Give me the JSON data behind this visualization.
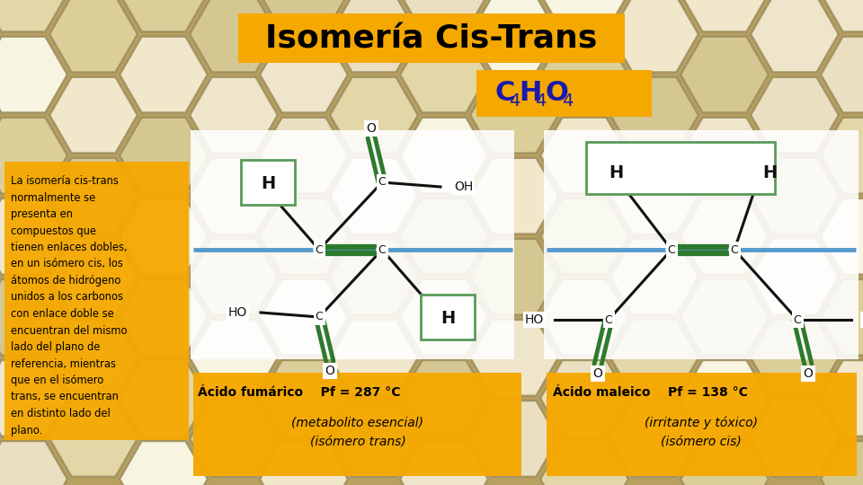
{
  "title": "Isomería Cis-Trans",
  "title_bg": "#F5A800",
  "left_box_color": "#F5A800",
  "left_lines": [
    "La isomería cis-trans",
    "normalmente se",
    "presenta en",
    "compuestos que",
    "tienen enlaces dobles,",
    "en un isómero cis, los",
    "átomos de hidrógeno",
    "unidos a los carbonos",
    "con enlace doble se",
    "encuentran del mismo",
    "lado del plano de",
    "referencia, mientras",
    "que en el isómero",
    "trans, se encuentran",
    "en distinto lado del",
    "plano."
  ],
  "formula_color": "#1a1aaa",
  "formula_bg": "#F5A800",
  "box1_bold": "Ácido fumárico    Pf = 287 °C",
  "box1_line2": "(metabolito esencial)",
  "box1_line3": "(isómero trans)",
  "box2_bold": "Ácido maleico    Pf = 138 °C",
  "box2_line2": "(irritante y tóxico)",
  "box2_line3": "(isómero cis)",
  "info_box_color": "#F5A800",
  "white_panel": "#ffffff",
  "blue_line": "#5599cc",
  "green_bond": "#2d7a2d",
  "bond_color": "#111111",
  "atom_label_color": "#111111",
  "green_rect_color": "#5a9a5a",
  "mol_bg": "#f5f5f5"
}
